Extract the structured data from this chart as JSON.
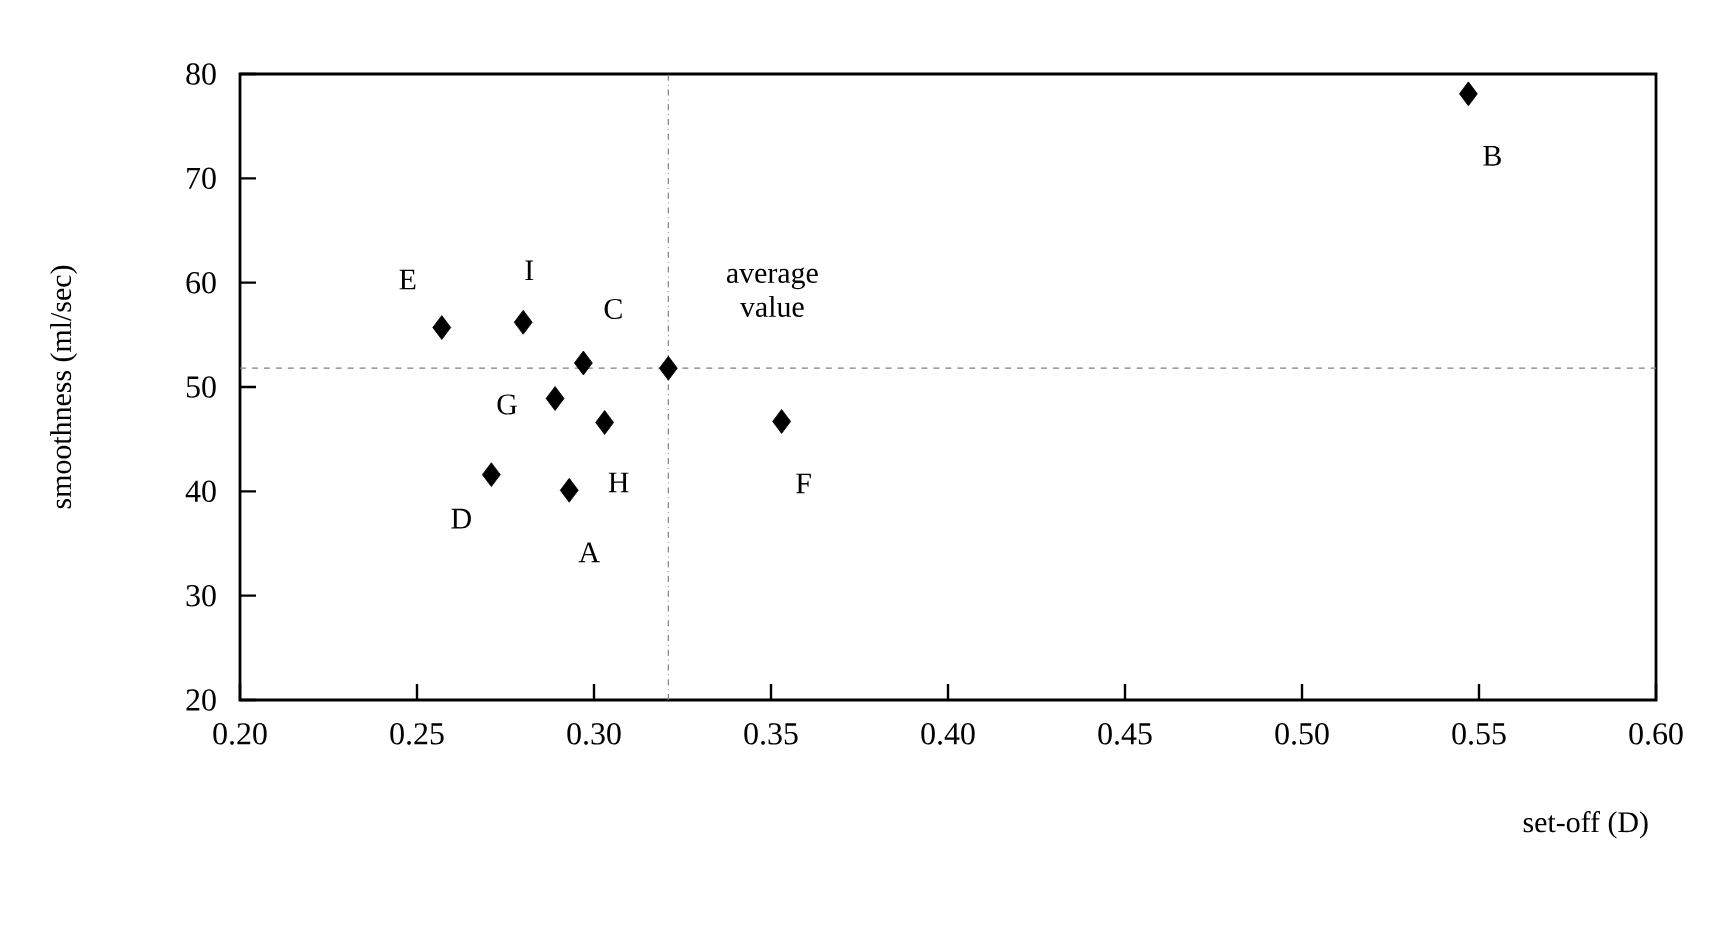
{
  "chart_data": {
    "type": "scatter",
    "xlabel": "set-off (D)",
    "ylabel": "smoothness (ml/sec)",
    "xlim": [
      0.2,
      0.6
    ],
    "ylim": [
      20,
      80
    ],
    "xticks": [
      {
        "value": 0.2,
        "label": "0.20"
      },
      {
        "value": 0.25,
        "label": "0.25"
      },
      {
        "value": 0.3,
        "label": "0.30"
      },
      {
        "value": 0.35,
        "label": "0.35"
      },
      {
        "value": 0.4,
        "label": "0.40"
      },
      {
        "value": 0.45,
        "label": "0.45"
      },
      {
        "value": 0.5,
        "label": "0.50"
      },
      {
        "value": 0.55,
        "label": "0.55"
      },
      {
        "value": 0.6,
        "label": "0.60"
      }
    ],
    "yticks": [
      20,
      30,
      40,
      50,
      60,
      70,
      80
    ],
    "marker": "diamond",
    "grid": false,
    "series": [
      {
        "color": "#000000",
        "x": [
          0.293,
          0.547,
          0.297,
          0.271,
          0.257,
          0.353,
          0.289,
          0.303,
          0.28,
          0.321
        ],
        "values": [
          40.1,
          78.1,
          52.3,
          41.6,
          55.7,
          46.7,
          48.9,
          46.6,
          56.2,
          51.8
        ]
      }
    ],
    "ref_lines": [
      {
        "axis": "x",
        "value": 0.321,
        "color": "#808080",
        "line_style": "dotted"
      },
      {
        "axis": "y",
        "value": 51.8,
        "color": "#808080",
        "line_style": "dashed"
      }
    ],
    "annotations": [
      {
        "text": "A",
        "x": 0.293,
        "y": 40.1
      },
      {
        "text": "B",
        "x": 0.547,
        "y": 78.1
      },
      {
        "text": "C",
        "x": 0.297,
        "y": 52.3
      },
      {
        "text": "D",
        "x": 0.271,
        "y": 41.6
      },
      {
        "text": "E",
        "x": 0.257,
        "y": 55.7
      },
      {
        "text": "F",
        "x": 0.353,
        "y": 46.7
      },
      {
        "text": "G",
        "x": 0.289,
        "y": 48.9
      },
      {
        "text": "H",
        "x": 0.303,
        "y": 46.6
      },
      {
        "text": "I",
        "x": 0.28,
        "y": 56.2
      },
      {
        "text": "average value",
        "x": 0.321,
        "y": 51.8
      }
    ]
  }
}
